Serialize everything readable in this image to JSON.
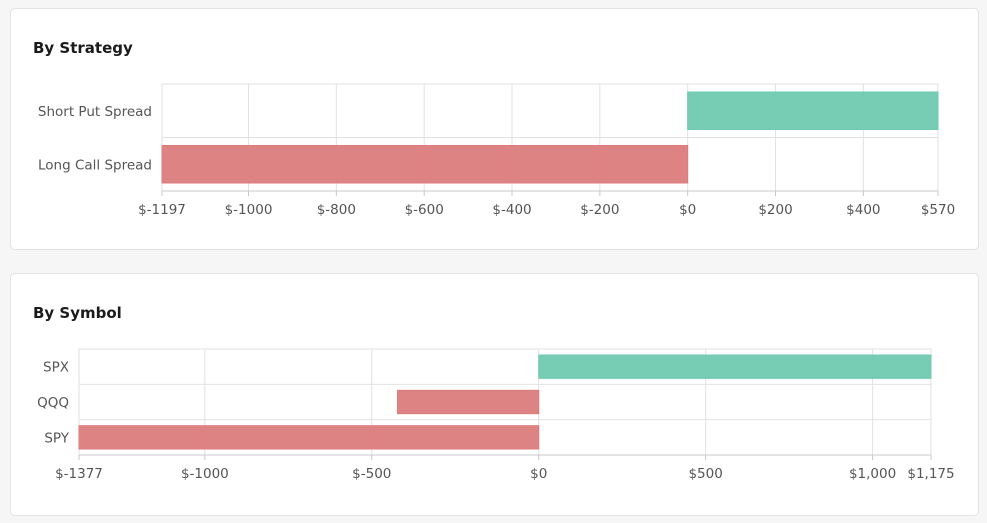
{
  "colors": {
    "positive": "#6fcab0",
    "negative": "#dc7c7c",
    "grid": "#e2e2e2",
    "axis": "#c8c8c8",
    "text": "#555555"
  },
  "chart_data": [
    {
      "type": "bar",
      "orientation": "horizontal",
      "title": "By Strategy",
      "categories": [
        "Short Put Spread",
        "Long Call Spread"
      ],
      "values": [
        570,
        -1197
      ],
      "xlim": [
        -1197,
        570
      ],
      "ticks": [
        -1197,
        -1000,
        -800,
        -600,
        -400,
        -200,
        0,
        200,
        400,
        570
      ],
      "tick_labels": [
        "$-1197",
        "$-1000",
        "$-800",
        "$-600",
        "$-400",
        "$-200",
        "$0",
        "$200",
        "$400",
        "$570"
      ],
      "grid": true,
      "xlabel": "",
      "ylabel": ""
    },
    {
      "type": "bar",
      "orientation": "horizontal",
      "title": "By Symbol",
      "categories": [
        "SPX",
        "QQQ",
        "SPY"
      ],
      "values": [
        1175,
        -423,
        -1377
      ],
      "xlim": [
        -1377,
        1175
      ],
      "ticks": [
        -1377,
        -1000,
        -500,
        0,
        500,
        1000,
        1175
      ],
      "tick_labels": [
        "$-1377",
        "$-1000",
        "$-500",
        "$0",
        "$500",
        "$1,000",
        "$1,175"
      ],
      "grid": true,
      "xlabel": "",
      "ylabel": ""
    }
  ]
}
